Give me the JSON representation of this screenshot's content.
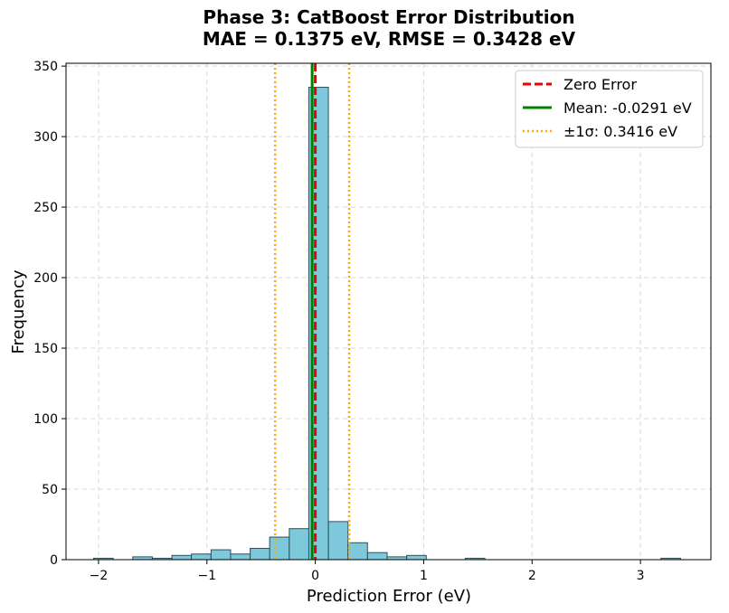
{
  "chart_data": {
    "type": "bar",
    "title_line1": "Phase 3: CatBoost Error Distribution",
    "title_line2": "MAE = 0.1375 eV, RMSE = 0.3428 eV",
    "xlabel": "Prediction Error (eV)",
    "ylabel": "Frequency",
    "xlim": [
      -2.3,
      3.65
    ],
    "ylim": [
      0,
      352
    ],
    "xticks": [
      -2,
      -1,
      0,
      1,
      2,
      3
    ],
    "yticks": [
      0,
      50,
      100,
      150,
      200,
      250,
      300,
      350
    ],
    "grid": true,
    "legend_position": "top-right",
    "bin_width": 0.1805,
    "bins": [
      {
        "x0": -2.045,
        "count": 1
      },
      {
        "x0": -1.684,
        "count": 2
      },
      {
        "x0": -1.504,
        "count": 1
      },
      {
        "x0": -1.323,
        "count": 3
      },
      {
        "x0": -1.143,
        "count": 4
      },
      {
        "x0": -0.962,
        "count": 7
      },
      {
        "x0": -0.782,
        "count": 4
      },
      {
        "x0": -0.601,
        "count": 8
      },
      {
        "x0": -0.421,
        "count": 16
      },
      {
        "x0": -0.24,
        "count": 22
      },
      {
        "x0": -0.06,
        "count": 335
      },
      {
        "x0": 0.121,
        "count": 27
      },
      {
        "x0": 0.301,
        "count": 12
      },
      {
        "x0": 0.482,
        "count": 5
      },
      {
        "x0": 0.662,
        "count": 2
      },
      {
        "x0": 0.843,
        "count": 3
      },
      {
        "x0": 1.384,
        "count": 1
      },
      {
        "x0": 3.189,
        "count": 1
      }
    ],
    "reference_lines": {
      "zero": 0,
      "mean": -0.0291,
      "sigma_low": -0.3707,
      "sigma_high": 0.3125
    },
    "legend": [
      {
        "key": "zero",
        "label": "Zero Error"
      },
      {
        "key": "mean",
        "label": "Mean: -0.0291 eV"
      },
      {
        "key": "sigma",
        "label": "±1σ: 0.3416 eV"
      }
    ],
    "colors": {
      "bar_fill": "#7ec8dc",
      "bar_edge": "#2f4f5a",
      "zero": "#ee0000",
      "mean": "#008000",
      "sigma": "#ffaa00",
      "grid": "#d9d9d9"
    }
  }
}
